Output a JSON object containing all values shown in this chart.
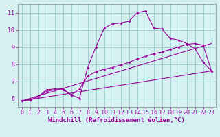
{
  "xlabel": "Windchill (Refroidissement éolien,°C)",
  "bg_color": "#d4f0f0",
  "line_color": "#990099",
  "xlim": [
    -0.5,
    23.5
  ],
  "ylim": [
    5.5,
    11.5
  ],
  "xticks": [
    0,
    1,
    2,
    3,
    4,
    5,
    6,
    7,
    8,
    9,
    10,
    11,
    12,
    13,
    14,
    15,
    16,
    17,
    18,
    19,
    20,
    21,
    22,
    23
  ],
  "yticks": [
    6,
    7,
    8,
    9,
    10,
    11
  ],
  "line1_x": [
    0,
    1,
    2,
    3,
    4,
    5,
    6,
    7,
    8,
    9,
    10,
    11,
    12,
    13,
    14,
    15,
    16,
    17,
    18,
    19,
    20,
    21,
    22,
    23
  ],
  "line1_y": [
    5.85,
    5.9,
    6.1,
    6.5,
    6.55,
    6.55,
    6.2,
    6.0,
    7.8,
    9.0,
    10.1,
    10.35,
    10.4,
    10.5,
    11.0,
    11.1,
    10.1,
    10.05,
    9.5,
    9.4,
    9.2,
    8.9,
    8.1,
    7.6
  ],
  "line2_x": [
    0,
    1,
    2,
    3,
    4,
    5,
    6,
    7,
    8,
    9,
    10,
    11,
    12,
    13,
    14,
    15,
    16,
    17,
    18,
    19,
    20,
    21,
    22,
    23
  ],
  "line2_y": [
    5.85,
    5.9,
    6.1,
    6.4,
    6.5,
    6.5,
    6.2,
    6.55,
    7.3,
    7.55,
    7.7,
    7.8,
    7.95,
    8.1,
    8.3,
    8.45,
    8.6,
    8.7,
    8.85,
    9.0,
    9.15,
    9.2,
    9.1,
    7.6
  ],
  "line3_x": [
    0,
    23
  ],
  "line3_y": [
    5.85,
    7.6
  ],
  "line4_x": [
    0,
    23
  ],
  "line4_y": [
    5.85,
    9.2
  ],
  "grid_color": "#99cccc",
  "marker": "D",
  "markersize": 2.0,
  "linewidth": 0.8,
  "xlabel_fontsize": 6.5,
  "tick_fontsize": 6.0,
  "tick_color": "#990099",
  "label_color": "#990099",
  "spine_color": "#888888"
}
